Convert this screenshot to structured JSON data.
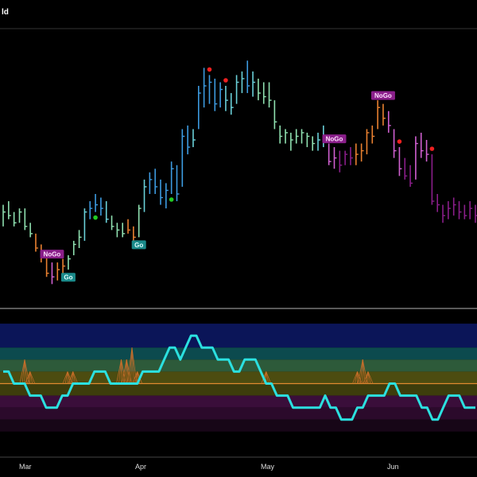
{
  "chart_data": [
    {
      "type": "ohlc",
      "title": "ld",
      "xlabel": "",
      "ylabel": "",
      "x_ticks": [
        "Mar",
        "Apr",
        "May",
        "Jun"
      ],
      "grid": false,
      "legend": "none",
      "colors": {
        "strong_go": "#3d9be0",
        "go": "#6ad0d8",
        "weak_go": "#8fe0b0",
        "weak_nogo": "#e88030",
        "nogo": "#d060d0",
        "strong_nogo": "#8a1e8a",
        "go_dot": "#22cc22",
        "nogo_dot": "#ee2020"
      },
      "bars": [
        {
          "h": 77,
          "l": 71,
          "c": 75,
          "k": "weak_go"
        },
        {
          "h": 78,
          "l": 73,
          "c": 74,
          "k": "weak_go"
        },
        {
          "h": 75,
          "l": 71,
          "c": 72,
          "k": "weak_go"
        },
        {
          "h": 76,
          "l": 72,
          "c": 75,
          "k": "weak_go"
        },
        {
          "h": 76,
          "l": 70,
          "c": 71,
          "k": "weak_go"
        },
        {
          "h": 72,
          "l": 68,
          "c": 69,
          "k": "weak_go"
        },
        {
          "h": 69,
          "l": 64,
          "c": 65,
          "k": "weak_nogo"
        },
        {
          "h": 66,
          "l": 61,
          "c": 63,
          "k": "weak_nogo"
        },
        {
          "h": 64,
          "l": 57,
          "c": 58,
          "k": "weak_nogo"
        },
        {
          "h": 61,
          "l": 55,
          "c": 57,
          "k": "nogo"
        },
        {
          "h": 61,
          "l": 56,
          "c": 59,
          "k": "weak_nogo"
        },
        {
          "h": 62,
          "l": 57,
          "c": 60,
          "k": "weak_nogo"
        },
        {
          "h": 63,
          "l": 59,
          "c": 62,
          "k": "weak_go"
        },
        {
          "h": 67,
          "l": 63,
          "c": 66,
          "k": "weak_go"
        },
        {
          "h": 70,
          "l": 65,
          "c": 68,
          "k": "weak_go"
        },
        {
          "h": 76,
          "l": 67,
          "c": 75,
          "k": "go"
        },
        {
          "h": 78,
          "l": 73,
          "c": 76,
          "k": "strong_go"
        },
        {
          "h": 80,
          "l": 75,
          "c": 77,
          "k": "strong_go"
        },
        {
          "h": 79,
          "l": 74,
          "c": 76,
          "k": "strong_go"
        },
        {
          "h": 78,
          "l": 72,
          "c": 73,
          "k": "go"
        },
        {
          "h": 74,
          "l": 70,
          "c": 71,
          "k": "weak_go"
        },
        {
          "h": 72,
          "l": 68,
          "c": 70,
          "k": "weak_go"
        },
        {
          "h": 72,
          "l": 68,
          "c": 69,
          "k": "weak_go"
        },
        {
          "h": 73,
          "l": 69,
          "c": 70,
          "k": "weak_nogo"
        },
        {
          "h": 71,
          "l": 66,
          "c": 68,
          "k": "weak_nogo"
        },
        {
          "h": 77,
          "l": 68,
          "c": 76,
          "k": "weak_go"
        },
        {
          "h": 84,
          "l": 75,
          "c": 82,
          "k": "go"
        },
        {
          "h": 86,
          "l": 80,
          "c": 84,
          "k": "strong_go"
        },
        {
          "h": 87,
          "l": 80,
          "c": 82,
          "k": "strong_go"
        },
        {
          "h": 84,
          "l": 77,
          "c": 79,
          "k": "strong_go"
        },
        {
          "h": 83,
          "l": 76,
          "c": 81,
          "k": "strong_go"
        },
        {
          "h": 89,
          "l": 80,
          "c": 87,
          "k": "strong_go"
        },
        {
          "h": 88,
          "l": 78,
          "c": 80,
          "k": "strong_go"
        },
        {
          "h": 98,
          "l": 82,
          "c": 96,
          "k": "strong_go"
        },
        {
          "h": 99,
          "l": 91,
          "c": 93,
          "k": "strong_go"
        },
        {
          "h": 98,
          "l": 93,
          "c": 95,
          "k": "go"
        },
        {
          "h": 110,
          "l": 98,
          "c": 108,
          "k": "strong_go"
        },
        {
          "h": 115,
          "l": 104,
          "c": 110,
          "k": "strong_go"
        },
        {
          "h": 113,
          "l": 105,
          "c": 111,
          "k": "strong_go"
        },
        {
          "h": 112,
          "l": 103,
          "c": 105,
          "k": "strong_go"
        },
        {
          "h": 111,
          "l": 104,
          "c": 109,
          "k": "strong_go"
        },
        {
          "h": 110,
          "l": 103,
          "c": 106,
          "k": "go"
        },
        {
          "h": 108,
          "l": 102,
          "c": 104,
          "k": "go"
        },
        {
          "h": 113,
          "l": 105,
          "c": 111,
          "k": "go"
        },
        {
          "h": 114,
          "l": 108,
          "c": 112,
          "k": "go"
        },
        {
          "h": 117,
          "l": 108,
          "c": 110,
          "k": "strong_go"
        },
        {
          "h": 114,
          "l": 107,
          "c": 111,
          "k": "go"
        },
        {
          "h": 112,
          "l": 106,
          "c": 108,
          "k": "weak_go"
        },
        {
          "h": 111,
          "l": 105,
          "c": 107,
          "k": "weak_go"
        },
        {
          "h": 111,
          "l": 104,
          "c": 106,
          "k": "weak_go"
        },
        {
          "h": 106,
          "l": 98,
          "c": 100,
          "k": "weak_go"
        },
        {
          "h": 99,
          "l": 94,
          "c": 96,
          "k": "weak_go"
        },
        {
          "h": 98,
          "l": 94,
          "c": 97,
          "k": "weak_go"
        },
        {
          "h": 97,
          "l": 92,
          "c": 95,
          "k": "weak_go"
        },
        {
          "h": 98,
          "l": 94,
          "c": 96,
          "k": "weak_go"
        },
        {
          "h": 98,
          "l": 94,
          "c": 97,
          "k": "weak_go"
        },
        {
          "h": 97,
          "l": 93,
          "c": 96,
          "k": "weak_go"
        },
        {
          "h": 96,
          "l": 92,
          "c": 94,
          "k": "weak_go"
        },
        {
          "h": 97,
          "l": 92,
          "c": 95,
          "k": "go"
        },
        {
          "h": 99,
          "l": 93,
          "c": 96,
          "k": "go"
        },
        {
          "h": 94,
          "l": 88,
          "c": 89,
          "k": "nogo"
        },
        {
          "h": 93,
          "l": 87,
          "c": 90,
          "k": "nogo"
        },
        {
          "h": 92,
          "l": 86,
          "c": 88,
          "k": "strong_nogo"
        },
        {
          "h": 92,
          "l": 88,
          "c": 91,
          "k": "strong_nogo"
        },
        {
          "h": 93,
          "l": 88,
          "c": 90,
          "k": "strong_nogo"
        },
        {
          "h": 94,
          "l": 88,
          "c": 91,
          "k": "weak_nogo"
        },
        {
          "h": 94,
          "l": 89,
          "c": 92,
          "k": "weak_nogo"
        },
        {
          "h": 98,
          "l": 91,
          "c": 97,
          "k": "weak_nogo"
        },
        {
          "h": 99,
          "l": 94,
          "c": 96,
          "k": "weak_nogo"
        },
        {
          "h": 106,
          "l": 98,
          "c": 104,
          "k": "weak_nogo"
        },
        {
          "h": 105,
          "l": 99,
          "c": 101,
          "k": "weak_nogo"
        },
        {
          "h": 103,
          "l": 97,
          "c": 99,
          "k": "nogo"
        },
        {
          "h": 98,
          "l": 90,
          "c": 92,
          "k": "nogo"
        },
        {
          "h": 93,
          "l": 85,
          "c": 87,
          "k": "nogo"
        },
        {
          "h": 90,
          "l": 84,
          "c": 85,
          "k": "strong_nogo"
        },
        {
          "h": 88,
          "l": 82,
          "c": 83,
          "k": "strong_nogo"
        },
        {
          "h": 96,
          "l": 84,
          "c": 94,
          "k": "nogo"
        },
        {
          "h": 97,
          "l": 90,
          "c": 92,
          "k": "nogo"
        },
        {
          "h": 95,
          "l": 89,
          "c": 91,
          "k": "nogo"
        },
        {
          "h": 91,
          "l": 77,
          "c": 78,
          "k": "strong_nogo"
        },
        {
          "h": 80,
          "l": 75,
          "c": 77,
          "k": "strong_nogo"
        },
        {
          "h": 77,
          "l": 72,
          "c": 74,
          "k": "strong_nogo"
        },
        {
          "h": 78,
          "l": 73,
          "c": 76,
          "k": "strong_nogo"
        },
        {
          "h": 79,
          "l": 74,
          "c": 77,
          "k": "strong_nogo"
        },
        {
          "h": 78,
          "l": 73,
          "c": 75,
          "k": "strong_nogo"
        },
        {
          "h": 77,
          "l": 73,
          "c": 74,
          "k": "strong_nogo"
        },
        {
          "h": 78,
          "l": 73,
          "c": 76,
          "k": "strong_nogo"
        },
        {
          "h": 77,
          "l": 72,
          "c": 74,
          "k": "strong_nogo"
        }
      ],
      "y_range": [
        50,
        125
      ],
      "signals": [
        {
          "i": 9,
          "type": "label",
          "text": "NoGo",
          "pos": "above",
          "kind": "nogo"
        },
        {
          "i": 12,
          "type": "label",
          "text": "Go",
          "pos": "below",
          "kind": "go"
        },
        {
          "i": 17,
          "type": "dot",
          "pos": "below",
          "kind": "go"
        },
        {
          "i": 25,
          "type": "label",
          "text": "Go",
          "pos": "below",
          "kind": "go"
        },
        {
          "i": 31,
          "type": "dot",
          "pos": "below",
          "kind": "go"
        },
        {
          "i": 38,
          "type": "dot",
          "pos": "above",
          "kind": "nogo"
        },
        {
          "i": 41,
          "type": "dot",
          "pos": "above",
          "kind": "nogo"
        },
        {
          "i": 61,
          "type": "label",
          "text": "NoGo",
          "pos": "above",
          "kind": "nogo"
        },
        {
          "i": 70,
          "type": "label",
          "text": "NoGo",
          "pos": "above",
          "kind": "nogo"
        },
        {
          "i": 73,
          "type": "dot",
          "pos": "above",
          "kind": "nogo"
        },
        {
          "i": 79,
          "type": "dot",
          "pos": "above",
          "kind": "nogo"
        }
      ]
    },
    {
      "type": "line",
      "title": "",
      "xlabel": "",
      "ylabel": "",
      "ylim": [
        -6,
        6
      ],
      "zero_line": 0,
      "bands": [
        {
          "from": 3,
          "to": 5,
          "color": "#0b1558"
        },
        {
          "from": 2,
          "to": 3,
          "color": "#0c4a4e"
        },
        {
          "from": 1,
          "to": 2,
          "color": "#2d5a3a"
        },
        {
          "from": 0,
          "to": 1,
          "color": "#4c4c10"
        },
        {
          "from": -1,
          "to": 0,
          "color": "#3d3d0c"
        },
        {
          "from": -2,
          "to": -1,
          "color": "#3a0e3a"
        },
        {
          "from": -3,
          "to": -2,
          "color": "#2b0a2b"
        },
        {
          "from": -4,
          "to": -3,
          "color": "#170617"
        }
      ],
      "series": [
        {
          "color": "#2be0e0",
          "values": [
            1,
            1,
            0,
            0,
            0,
            -1,
            -1,
            -1,
            -2,
            -2,
            -2,
            -1,
            -1,
            0,
            0,
            0,
            0,
            1,
            1,
            1,
            0,
            0,
            0,
            0,
            0,
            0,
            1,
            1,
            1,
            1,
            2,
            3,
            3,
            2,
            3,
            4,
            4,
            3,
            3,
            3,
            2,
            2,
            2,
            1,
            1,
            2,
            2,
            2,
            1,
            0,
            0,
            -1,
            -1,
            -1,
            -2,
            -2,
            -2,
            -2,
            -2,
            -2,
            -1,
            -2,
            -2,
            -3,
            -3,
            -3,
            -2,
            -2,
            -1,
            -1,
            -1,
            -1,
            0,
            0,
            -1,
            -1,
            -1,
            -1,
            -2,
            -2,
            -3,
            -3,
            -2,
            -1,
            -1,
            -1,
            -2,
            -2,
            -2
          ]
        }
      ],
      "spikes": [
        {
          "i": 4,
          "h": 2
        },
        {
          "i": 5,
          "h": 1
        },
        {
          "i": 12,
          "h": 1
        },
        {
          "i": 13,
          "h": 1
        },
        {
          "i": 22,
          "h": 2
        },
        {
          "i": 23,
          "h": 2
        },
        {
          "i": 24,
          "h": 3
        },
        {
          "i": 25,
          "h": 1
        },
        {
          "i": 49,
          "h": 1
        },
        {
          "i": 66,
          "h": 1
        },
        {
          "i": 67,
          "h": 2
        },
        {
          "i": 68,
          "h": 1
        }
      ]
    }
  ]
}
